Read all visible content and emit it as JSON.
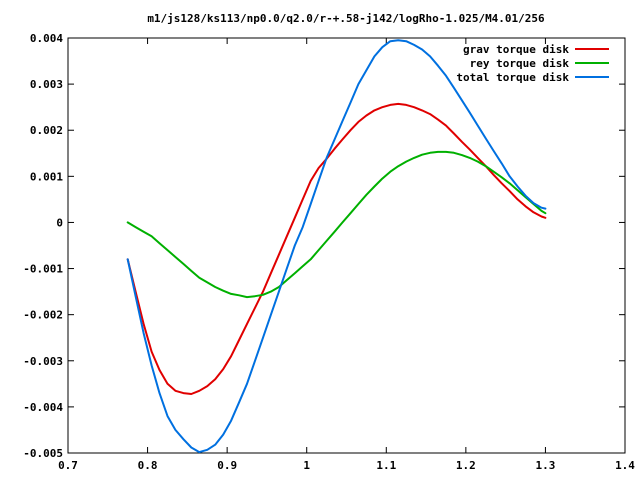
{
  "chart_data": {
    "type": "line",
    "title": "m1/js128/ks113/np0.0/q2.0/r-+.58-j142/logRho-1.025/M4.01/256",
    "xlabel": "",
    "ylabel": "",
    "xlim": [
      0.7,
      1.4
    ],
    "ylim": [
      -0.005,
      0.004
    ],
    "x_ticks": [
      "0.7",
      "0.8",
      "0.9",
      "1",
      "1.1",
      "1.2",
      "1.3",
      "1.4"
    ],
    "y_ticks": [
      "0.004",
      "0.003",
      "0.002",
      "0.001",
      "0",
      "-0.001",
      "-0.002",
      "-0.003",
      "-0.004",
      "-0.005"
    ],
    "grid": false,
    "legend_position": "top-right",
    "series": [
      {
        "name": "grav torque disk",
        "color": "#e00000",
        "points": [
          [
            0.775,
            -0.0008
          ],
          [
            0.785,
            -0.0015
          ],
          [
            0.795,
            -0.0022
          ],
          [
            0.805,
            -0.0028
          ],
          [
            0.815,
            -0.0032
          ],
          [
            0.825,
            -0.0035
          ],
          [
            0.835,
            -0.00365
          ],
          [
            0.845,
            -0.0037
          ],
          [
            0.855,
            -0.00372
          ],
          [
            0.865,
            -0.00365
          ],
          [
            0.875,
            -0.00355
          ],
          [
            0.885,
            -0.0034
          ],
          [
            0.895,
            -0.00318
          ],
          [
            0.905,
            -0.0029
          ],
          [
            0.915,
            -0.00255
          ],
          [
            0.925,
            -0.0022
          ],
          [
            0.935,
            -0.00185
          ],
          [
            0.945,
            -0.0015
          ],
          [
            0.955,
            -0.0011
          ],
          [
            0.965,
            -0.0007
          ],
          [
            0.975,
            -0.0003
          ],
          [
            0.985,
            0.0001
          ],
          [
            0.995,
            0.0005
          ],
          [
            1.005,
            0.0009
          ],
          [
            1.015,
            0.00118
          ],
          [
            1.025,
            0.00138
          ],
          [
            1.035,
            0.0016
          ],
          [
            1.045,
            0.0018
          ],
          [
            1.055,
            0.002
          ],
          [
            1.065,
            0.00218
          ],
          [
            1.075,
            0.00232
          ],
          [
            1.085,
            0.00243
          ],
          [
            1.095,
            0.0025
          ],
          [
            1.105,
            0.00255
          ],
          [
            1.115,
            0.00257
          ],
          [
            1.125,
            0.00255
          ],
          [
            1.135,
            0.0025
          ],
          [
            1.145,
            0.00243
          ],
          [
            1.155,
            0.00235
          ],
          [
            1.165,
            0.00223
          ],
          [
            1.175,
            0.0021
          ],
          [
            1.185,
            0.00193
          ],
          [
            1.195,
            0.00175
          ],
          [
            1.205,
            0.00158
          ],
          [
            1.215,
            0.0014
          ],
          [
            1.225,
            0.00122
          ],
          [
            1.235,
            0.00103
          ],
          [
            1.245,
            0.00085
          ],
          [
            1.255,
            0.00068
          ],
          [
            1.265,
            0.0005
          ],
          [
            1.275,
            0.00035
          ],
          [
            1.285,
            0.00022
          ],
          [
            1.295,
            0.00013
          ],
          [
            1.3,
            0.0001
          ]
        ]
      },
      {
        "name": "rey torque disk",
        "color": "#00b000",
        "points": [
          [
            0.775,
            0.0
          ],
          [
            0.785,
            -0.0001
          ],
          [
            0.795,
            -0.0002
          ],
          [
            0.805,
            -0.0003
          ],
          [
            0.815,
            -0.00045
          ],
          [
            0.825,
            -0.0006
          ],
          [
            0.835,
            -0.00075
          ],
          [
            0.845,
            -0.0009
          ],
          [
            0.855,
            -0.00105
          ],
          [
            0.865,
            -0.0012
          ],
          [
            0.875,
            -0.0013
          ],
          [
            0.885,
            -0.0014
          ],
          [
            0.895,
            -0.00148
          ],
          [
            0.905,
            -0.00155
          ],
          [
            0.915,
            -0.00158
          ],
          [
            0.925,
            -0.00162
          ],
          [
            0.935,
            -0.0016
          ],
          [
            0.945,
            -0.00157
          ],
          [
            0.955,
            -0.0015
          ],
          [
            0.965,
            -0.0014
          ],
          [
            0.975,
            -0.00125
          ],
          [
            0.985,
            -0.0011
          ],
          [
            0.995,
            -0.00095
          ],
          [
            1.005,
            -0.0008
          ],
          [
            1.015,
            -0.0006
          ],
          [
            1.025,
            -0.0004
          ],
          [
            1.035,
            -0.0002
          ],
          [
            1.045,
            0.0
          ],
          [
            1.055,
            0.0002
          ],
          [
            1.065,
            0.0004
          ],
          [
            1.075,
            0.0006
          ],
          [
            1.085,
            0.00078
          ],
          [
            1.095,
            0.00095
          ],
          [
            1.105,
            0.0011
          ],
          [
            1.115,
            0.00122
          ],
          [
            1.125,
            0.00132
          ],
          [
            1.135,
            0.0014
          ],
          [
            1.145,
            0.00147
          ],
          [
            1.155,
            0.00151
          ],
          [
            1.165,
            0.00153
          ],
          [
            1.175,
            0.00153
          ],
          [
            1.185,
            0.00151
          ],
          [
            1.195,
            0.00146
          ],
          [
            1.205,
            0.0014
          ],
          [
            1.215,
            0.00132
          ],
          [
            1.225,
            0.00122
          ],
          [
            1.235,
            0.0011
          ],
          [
            1.245,
            0.00098
          ],
          [
            1.255,
            0.00085
          ],
          [
            1.265,
            0.0007
          ],
          [
            1.275,
            0.00055
          ],
          [
            1.285,
            0.0004
          ],
          [
            1.295,
            0.00025
          ],
          [
            1.3,
            0.0002
          ]
        ]
      },
      {
        "name": "total torque disk",
        "color": "#0070e0",
        "points": [
          [
            0.775,
            -0.0008
          ],
          [
            0.785,
            -0.0016
          ],
          [
            0.795,
            -0.0024
          ],
          [
            0.805,
            -0.0031
          ],
          [
            0.815,
            -0.0037
          ],
          [
            0.825,
            -0.0042
          ],
          [
            0.835,
            -0.0045
          ],
          [
            0.845,
            -0.0047
          ],
          [
            0.855,
            -0.00488
          ],
          [
            0.865,
            -0.00498
          ],
          [
            0.875,
            -0.00493
          ],
          [
            0.885,
            -0.00482
          ],
          [
            0.895,
            -0.0046
          ],
          [
            0.905,
            -0.0043
          ],
          [
            0.915,
            -0.0039
          ],
          [
            0.925,
            -0.0035
          ],
          [
            0.935,
            -0.003
          ],
          [
            0.945,
            -0.0025
          ],
          [
            0.955,
            -0.002
          ],
          [
            0.965,
            -0.0015
          ],
          [
            0.975,
            -0.001
          ],
          [
            0.985,
            -0.0005
          ],
          [
            0.995,
            -0.0001
          ],
          [
            1.005,
            0.0004
          ],
          [
            1.015,
            0.0009
          ],
          [
            1.025,
            0.0014
          ],
          [
            1.035,
            0.0018
          ],
          [
            1.045,
            0.0022
          ],
          [
            1.055,
            0.0026
          ],
          [
            1.065,
            0.003
          ],
          [
            1.075,
            0.0033
          ],
          [
            1.085,
            0.0036
          ],
          [
            1.095,
            0.0038
          ],
          [
            1.105,
            0.00393
          ],
          [
            1.115,
            0.00395
          ],
          [
            1.125,
            0.00393
          ],
          [
            1.135,
            0.00385
          ],
          [
            1.145,
            0.00375
          ],
          [
            1.155,
            0.0036
          ],
          [
            1.165,
            0.0034
          ],
          [
            1.175,
            0.00318
          ],
          [
            1.185,
            0.00292
          ],
          [
            1.195,
            0.00265
          ],
          [
            1.205,
            0.00238
          ],
          [
            1.215,
            0.0021
          ],
          [
            1.225,
            0.00182
          ],
          [
            1.235,
            0.00155
          ],
          [
            1.245,
            0.00128
          ],
          [
            1.255,
            0.001
          ],
          [
            1.265,
            0.00078
          ],
          [
            1.275,
            0.00058
          ],
          [
            1.285,
            0.00042
          ],
          [
            1.295,
            0.00032
          ],
          [
            1.3,
            0.0003
          ]
        ]
      }
    ]
  }
}
